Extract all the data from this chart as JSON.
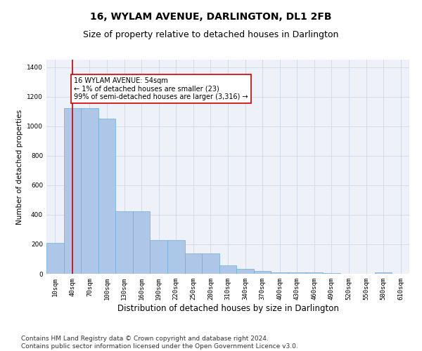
{
  "title": "16, WYLAM AVENUE, DARLINGTON, DL1 2FB",
  "subtitle": "Size of property relative to detached houses in Darlington",
  "xlabel": "Distribution of detached houses by size in Darlington",
  "ylabel": "Number of detached properties",
  "bar_color": "#aec6e8",
  "bar_edge_color": "#6baed6",
  "categories": [
    "10sqm",
    "40sqm",
    "70sqm",
    "100sqm",
    "130sqm",
    "160sqm",
    "190sqm",
    "220sqm",
    "250sqm",
    "280sqm",
    "310sqm",
    "340sqm",
    "370sqm",
    "400sqm",
    "430sqm",
    "460sqm",
    "490sqm",
    "520sqm",
    "550sqm",
    "580sqm",
    "610sqm"
  ],
  "values": [
    210,
    1120,
    1120,
    1050,
    425,
    425,
    230,
    230,
    140,
    140,
    55,
    35,
    20,
    10,
    10,
    10,
    5,
    0,
    0,
    10,
    0
  ],
  "vline_x": 1.0,
  "vline_color": "#cc0000",
  "annotation_text": "16 WYLAM AVENUE: 54sqm\n← 1% of detached houses are smaller (23)\n99% of semi-detached houses are larger (3,316) →",
  "annotation_box_color": "white",
  "annotation_box_edge": "#cc0000",
  "ylim": [
    0,
    1450
  ],
  "yticks": [
    0,
    200,
    400,
    600,
    800,
    1000,
    1200,
    1400
  ],
  "grid_color": "#d0d8e8",
  "background_color": "#eef2f8",
  "footer_line1": "Contains HM Land Registry data © Crown copyright and database right 2024.",
  "footer_line2": "Contains public sector information licensed under the Open Government Licence v3.0.",
  "title_fontsize": 10,
  "subtitle_fontsize": 9,
  "xlabel_fontsize": 8.5,
  "ylabel_fontsize": 7.5,
  "tick_fontsize": 6.5,
  "footer_fontsize": 6.5,
  "annotation_fontsize": 7
}
